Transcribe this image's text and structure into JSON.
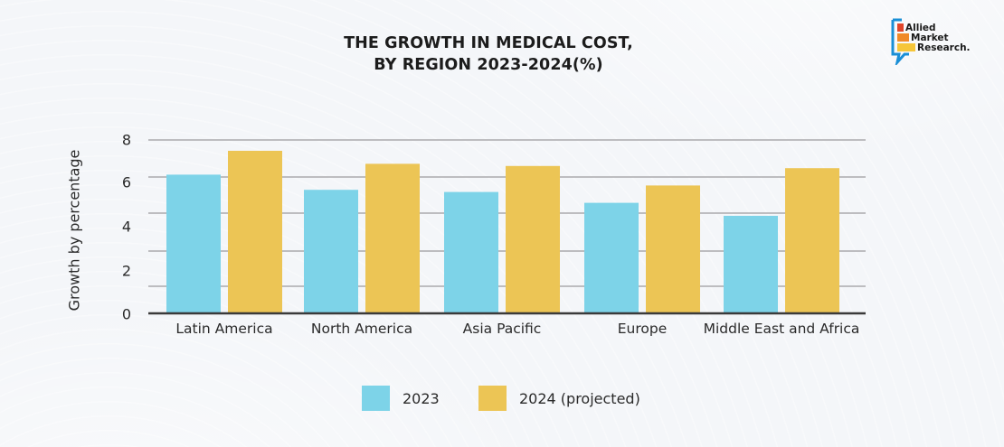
{
  "logo": {
    "lines": [
      "Allied",
      "Market",
      "Research."
    ],
    "colors": {
      "frame": "#1a8fd6",
      "bar1": "#e0452b",
      "bar2": "#f08a2a",
      "bar3": "#f6c63a"
    }
  },
  "colors": {
    "series_2023": "#7dd3e8",
    "series_2024": "#ecc555",
    "grid": "#bdbdc0",
    "axis": "#3a3a3a"
  },
  "chart_data": {
    "type": "bar",
    "title": [
      "THE GROWTH IN MEDICAL COST,",
      "BY REGION 2023-2024(%)"
    ],
    "xlabel": "",
    "ylabel": "Growth by percentage",
    "categories": [
      "Latin America",
      "North America",
      "Asia Pacific",
      "Europe",
      "Middle East and Africa"
    ],
    "series": [
      {
        "name": "2023",
        "values": [
          6.4,
          5.7,
          5.6,
          5.1,
          4.5
        ]
      },
      {
        "name": "2024 (projected)",
        "values": [
          7.5,
          6.9,
          6.8,
          5.9,
          6.7
        ]
      }
    ],
    "y_ticks": [
      "0",
      "2",
      "4",
      "6",
      "8"
    ],
    "ylim": [
      0,
      8
    ],
    "grid": true,
    "legend_position": "bottom-center"
  }
}
